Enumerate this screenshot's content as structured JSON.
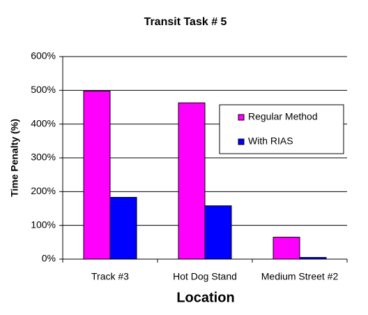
{
  "chart_data": {
    "type": "bar",
    "title": "Transit Task # 5",
    "x_label": "Location",
    "y_label": "Time Penalty (%)",
    "categories": [
      "Track #3",
      "Hot Dog Stand",
      "Medium Street #2"
    ],
    "series": [
      {
        "name": "Regular Method",
        "color": "#ff00ff",
        "values": [
          498,
          463,
          65
        ]
      },
      {
        "name": "With RIAS",
        "color": "#0000ff",
        "values": [
          183,
          158,
          5
        ]
      }
    ],
    "ylim": [
      0,
      600
    ],
    "yticks": [
      {
        "value": 0,
        "label": "0%"
      },
      {
        "value": 100,
        "label": "100%"
      },
      {
        "value": 200,
        "label": "200%"
      },
      {
        "value": 300,
        "label": "300%"
      },
      {
        "value": 400,
        "label": "400%"
      },
      {
        "value": 500,
        "label": "500%"
      },
      {
        "value": 600,
        "label": "600%"
      }
    ],
    "grid": true,
    "legend": "right"
  }
}
